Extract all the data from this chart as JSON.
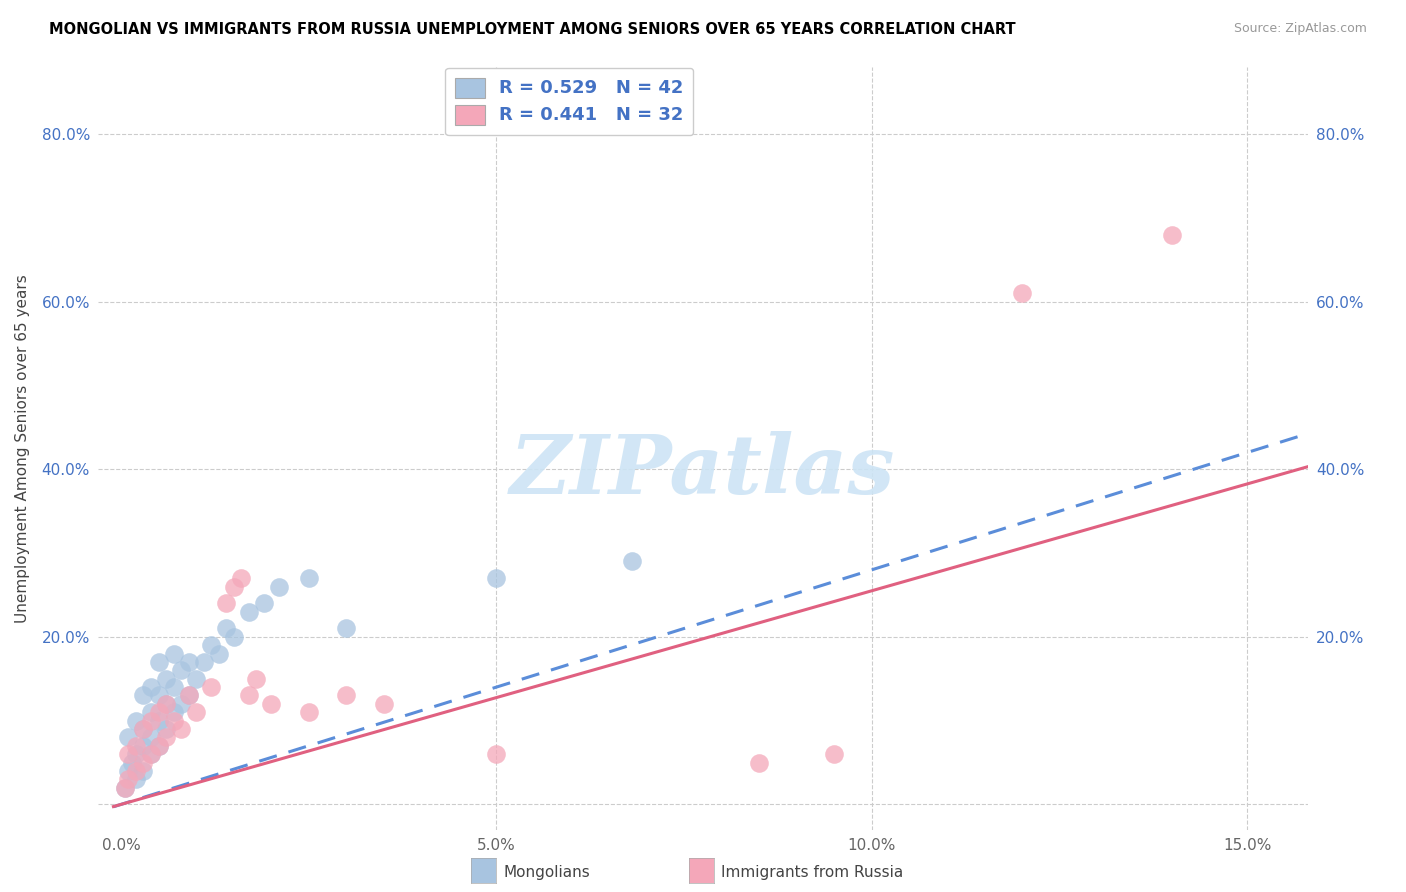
{
  "title": "MONGOLIAN VS IMMIGRANTS FROM RUSSIA UNEMPLOYMENT AMONG SENIORS OVER 65 YEARS CORRELATION CHART",
  "source": "Source: ZipAtlas.com",
  "xlim": [
    -0.003,
    0.158
  ],
  "ylim": [
    -0.03,
    0.88
  ],
  "mongolians_color": "#a8c4e0",
  "russia_color": "#f4a7b9",
  "mongolians_line_color": "#5b8dd9",
  "russia_line_color": "#e06080",
  "R_mongo": 0.529,
  "N_mongo": 42,
  "R_russia": 0.441,
  "N_russia": 32,
  "ylabel": "Unemployment Among Seniors over 65 years",
  "watermark_text": "ZIPatlas",
  "watermark_color": "#cde4f5",
  "yticks": [
    0.0,
    0.2,
    0.4,
    0.6,
    0.8
  ],
  "ytick_labels": [
    "",
    "20.0%",
    "40.0%",
    "60.0%",
    "80.0%"
  ],
  "xticks": [
    0.0,
    0.05,
    0.1,
    0.15
  ],
  "xtick_labels": [
    "0.0%",
    "5.0%",
    "10.0%",
    "15.0%"
  ],
  "mongo_x": [
    0.0005,
    0.001,
    0.001,
    0.0015,
    0.002,
    0.002,
    0.002,
    0.003,
    0.003,
    0.003,
    0.003,
    0.004,
    0.004,
    0.004,
    0.004,
    0.005,
    0.005,
    0.005,
    0.005,
    0.006,
    0.006,
    0.006,
    0.007,
    0.007,
    0.007,
    0.008,
    0.008,
    0.009,
    0.009,
    0.01,
    0.011,
    0.012,
    0.013,
    0.014,
    0.015,
    0.017,
    0.019,
    0.021,
    0.025,
    0.03,
    0.05,
    0.068
  ],
  "mongo_y": [
    0.02,
    0.04,
    0.08,
    0.05,
    0.03,
    0.06,
    0.1,
    0.04,
    0.07,
    0.09,
    0.13,
    0.06,
    0.08,
    0.11,
    0.14,
    0.07,
    0.1,
    0.13,
    0.17,
    0.09,
    0.12,
    0.15,
    0.11,
    0.14,
    0.18,
    0.12,
    0.16,
    0.13,
    0.17,
    0.15,
    0.17,
    0.19,
    0.18,
    0.21,
    0.2,
    0.23,
    0.24,
    0.26,
    0.27,
    0.21,
    0.27,
    0.29
  ],
  "russia_x": [
    0.0005,
    0.001,
    0.001,
    0.002,
    0.002,
    0.003,
    0.003,
    0.004,
    0.004,
    0.005,
    0.005,
    0.006,
    0.006,
    0.007,
    0.008,
    0.009,
    0.01,
    0.012,
    0.014,
    0.015,
    0.016,
    0.017,
    0.018,
    0.02,
    0.025,
    0.03,
    0.035,
    0.05,
    0.085,
    0.095,
    0.12,
    0.14
  ],
  "russia_y": [
    0.02,
    0.03,
    0.06,
    0.04,
    0.07,
    0.05,
    0.09,
    0.06,
    0.1,
    0.07,
    0.11,
    0.08,
    0.12,
    0.1,
    0.09,
    0.13,
    0.11,
    0.14,
    0.24,
    0.26,
    0.27,
    0.13,
    0.15,
    0.12,
    0.11,
    0.13,
    0.12,
    0.06,
    0.05,
    0.06,
    0.61,
    0.68
  ]
}
